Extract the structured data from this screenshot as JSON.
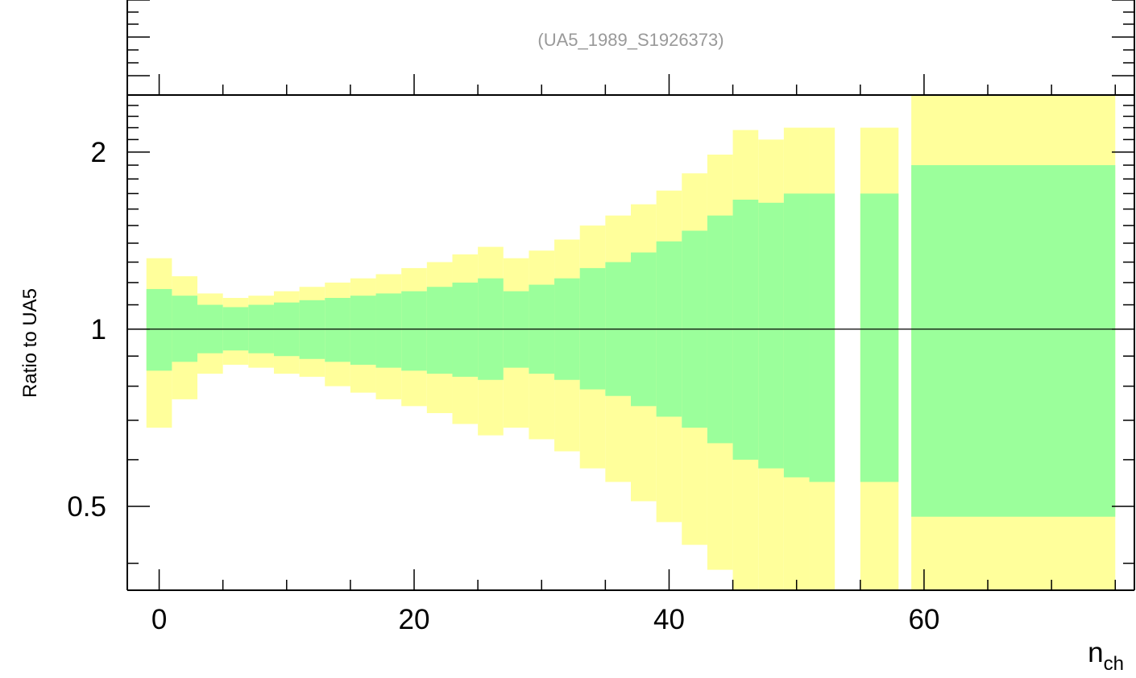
{
  "chart_data": {
    "type": "bar",
    "subtype": "ratio-uncertainty-bands",
    "title": "(UA5_1989_S1926373)",
    "xlabel": "n",
    "xlabel_subscript": "ch",
    "ylabel": "Ratio to UA5",
    "xlim": [
      -2.5,
      76.5
    ],
    "ylim": [
      0.36,
      2.5
    ],
    "yscale": "log",
    "reference_line": 1,
    "x_ticks": [
      0,
      20,
      40,
      60
    ],
    "x_tick_labels": [
      "0",
      "20",
      "40",
      "60"
    ],
    "y_ticks": [
      0.5,
      1,
      2
    ],
    "y_tick_labels": [
      "0.5",
      "1",
      "2"
    ],
    "colors": {
      "stat_band": "#9bff9b",
      "total_band": "#ffff9b",
      "reference_line": "#000000",
      "title_text": "#999999"
    },
    "bins": [
      {
        "x": [
          -1,
          1
        ],
        "stat": [
          0.85,
          1.17
        ],
        "total": [
          0.68,
          1.32
        ]
      },
      {
        "x": [
          1,
          3
        ],
        "stat": [
          0.88,
          1.14
        ],
        "total": [
          0.76,
          1.23
        ]
      },
      {
        "x": [
          3,
          5
        ],
        "stat": [
          0.91,
          1.1
        ],
        "total": [
          0.84,
          1.15
        ]
      },
      {
        "x": [
          5,
          7
        ],
        "stat": [
          0.92,
          1.09
        ],
        "total": [
          0.87,
          1.13
        ]
      },
      {
        "x": [
          7,
          9
        ],
        "stat": [
          0.91,
          1.1
        ],
        "total": [
          0.86,
          1.14
        ]
      },
      {
        "x": [
          9,
          11
        ],
        "stat": [
          0.9,
          1.11
        ],
        "total": [
          0.84,
          1.16
        ]
      },
      {
        "x": [
          11,
          13
        ],
        "stat": [
          0.89,
          1.12
        ],
        "total": [
          0.83,
          1.18
        ]
      },
      {
        "x": [
          13,
          15
        ],
        "stat": [
          0.88,
          1.13
        ],
        "total": [
          0.8,
          1.2
        ]
      },
      {
        "x": [
          15,
          17
        ],
        "stat": [
          0.87,
          1.14
        ],
        "total": [
          0.78,
          1.22
        ]
      },
      {
        "x": [
          17,
          19
        ],
        "stat": [
          0.86,
          1.15
        ],
        "total": [
          0.76,
          1.24
        ]
      },
      {
        "x": [
          19,
          21
        ],
        "stat": [
          0.85,
          1.16
        ],
        "total": [
          0.74,
          1.27
        ]
      },
      {
        "x": [
          21,
          23
        ],
        "stat": [
          0.84,
          1.18
        ],
        "total": [
          0.72,
          1.3
        ]
      },
      {
        "x": [
          23,
          25
        ],
        "stat": [
          0.83,
          1.2
        ],
        "total": [
          0.69,
          1.34
        ]
      },
      {
        "x": [
          25,
          27
        ],
        "stat": [
          0.82,
          1.22
        ],
        "total": [
          0.66,
          1.38
        ]
      },
      {
        "x": [
          27,
          29
        ],
        "stat": [
          0.86,
          1.16
        ],
        "total": [
          0.68,
          1.32
        ]
      },
      {
        "x": [
          29,
          31
        ],
        "stat": [
          0.84,
          1.19
        ],
        "total": [
          0.65,
          1.36
        ]
      },
      {
        "x": [
          31,
          33
        ],
        "stat": [
          0.82,
          1.22
        ],
        "total": [
          0.62,
          1.42
        ]
      },
      {
        "x": [
          33,
          35
        ],
        "stat": [
          0.79,
          1.27
        ],
        "total": [
          0.58,
          1.5
        ]
      },
      {
        "x": [
          35,
          37
        ],
        "stat": [
          0.77,
          1.3
        ],
        "total": [
          0.55,
          1.56
        ]
      },
      {
        "x": [
          37,
          39
        ],
        "stat": [
          0.74,
          1.35
        ],
        "total": [
          0.51,
          1.63
        ]
      },
      {
        "x": [
          39,
          41
        ],
        "stat": [
          0.71,
          1.41
        ],
        "total": [
          0.47,
          1.72
        ]
      },
      {
        "x": [
          41,
          43
        ],
        "stat": [
          0.68,
          1.47
        ],
        "total": [
          0.43,
          1.84
        ]
      },
      {
        "x": [
          43,
          45
        ],
        "stat": [
          0.64,
          1.56
        ],
        "total": [
          0.39,
          1.98
        ]
      },
      {
        "x": [
          45,
          47
        ],
        "stat": [
          0.6,
          1.66
        ],
        "total": [
          0.34,
          2.18
        ]
      },
      {
        "x": [
          47,
          49
        ],
        "stat": [
          0.58,
          1.64
        ],
        "total": [
          0.33,
          2.1
        ]
      },
      {
        "x": [
          49,
          51
        ],
        "stat": [
          0.56,
          1.7
        ],
        "total": [
          0.3,
          2.2
        ]
      },
      {
        "x": [
          51,
          53
        ],
        "stat": [
          0.55,
          1.7
        ],
        "total": [
          0.3,
          2.2
        ]
      },
      {
        "x": [
          55,
          58
        ],
        "stat": [
          0.55,
          1.7
        ],
        "total": [
          0.3,
          2.2
        ]
      },
      {
        "x": [
          59,
          75
        ],
        "stat": [
          0.48,
          1.9
        ],
        "total": [
          0.24,
          3.2
        ]
      }
    ]
  }
}
